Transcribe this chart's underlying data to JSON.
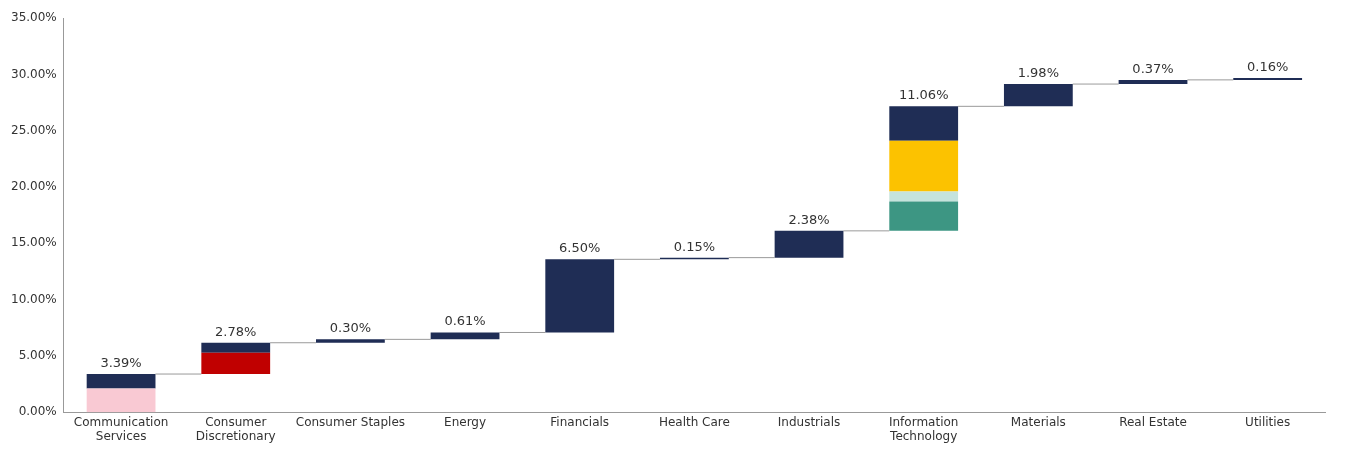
{
  "chart_data": {
    "type": "bar",
    "categories": [
      "Communication Services",
      "Consumer Discretionary",
      "Consumer Staples",
      "Energy",
      "Financials",
      "Health Care",
      "Industrials",
      "Information Technology",
      "Materials",
      "Real Estate",
      "Utilities"
    ],
    "series": [
      {
        "color": "#f9c9d3",
        "base": [
          0,
          null,
          null,
          null,
          null,
          null,
          null,
          null,
          null,
          null,
          null
        ],
        "values": [
          2.1,
          null,
          null,
          null,
          null,
          null,
          null,
          null,
          null,
          null,
          null
        ]
      },
      {
        "color": "#c00000",
        "base": [
          null,
          3.39,
          null,
          null,
          null,
          null,
          null,
          null,
          null,
          null,
          null
        ],
        "values": [
          null,
          1.9,
          null,
          null,
          null,
          null,
          null,
          null,
          null,
          null,
          null
        ]
      },
      {
        "color": "#3d9683",
        "base": [
          null,
          null,
          null,
          null,
          null,
          null,
          null,
          16.11,
          null,
          null,
          null
        ],
        "values": [
          null,
          null,
          null,
          null,
          null,
          null,
          null,
          2.6,
          null,
          null,
          null
        ]
      },
      {
        "color": "#c5e3dc",
        "base": [
          null,
          null,
          null,
          null,
          null,
          null,
          null,
          18.71,
          null,
          null,
          null
        ],
        "values": [
          null,
          null,
          null,
          null,
          null,
          null,
          null,
          0.9,
          null,
          null,
          null
        ]
      },
      {
        "color": "#fcc200",
        "base": [
          null,
          null,
          null,
          null,
          null,
          null,
          null,
          19.61,
          null,
          null,
          null
        ],
        "values": [
          null,
          null,
          null,
          null,
          null,
          null,
          null,
          4.5,
          null,
          null,
          null
        ]
      },
      {
        "color": "#1f2d55",
        "base": [
          2.1,
          5.29,
          6.17,
          6.47,
          7.08,
          13.58,
          13.73,
          24.11,
          27.17,
          29.15,
          29.52
        ],
        "values": [
          1.29,
          0.88,
          0.3,
          0.61,
          6.5,
          0.15,
          2.38,
          3.06,
          1.98,
          0.37,
          0.16
        ]
      }
    ],
    "annotations": [
      {
        "text": "3.39%",
        "x": "Communication Services",
        "y": 3.39
      },
      {
        "text": "2.78%",
        "x": "Consumer Discretionary",
        "y": 6.17
      },
      {
        "text": "0.30%",
        "x": "Consumer Staples",
        "y": 6.47
      },
      {
        "text": "0.61%",
        "x": "Energy",
        "y": 7.08
      },
      {
        "text": "6.50%",
        "x": "Financials",
        "y": 13.58
      },
      {
        "text": "0.15%",
        "x": "Health Care",
        "y": 13.73
      },
      {
        "text": "2.38%",
        "x": "Industrials",
        "y": 16.11
      },
      {
        "text": "11.06%",
        "x": "Information Technology",
        "y": 27.17
      },
      {
        "text": "1.98%",
        "x": "Materials",
        "y": 29.15
      },
      {
        "text": "0.37%",
        "x": "Real Estate",
        "y": 29.52
      },
      {
        "text": "0.16%",
        "x": "Utilities",
        "y": 29.68
      }
    ],
    "ylim": [
      0,
      35
    ],
    "yticks": [
      {
        "value": 0,
        "label": "0.00%"
      },
      {
        "value": 5,
        "label": "5.00%"
      },
      {
        "value": 10,
        "label": "10.00%"
      },
      {
        "value": 15,
        "label": "15.00%"
      },
      {
        "value": 20,
        "label": "20.00%"
      },
      {
        "value": 25,
        "label": "25.00%"
      },
      {
        "value": 30,
        "label": "30.00%"
      },
      {
        "value": 35,
        "label": "35.00%"
      }
    ],
    "grid": false,
    "legend": false
  }
}
